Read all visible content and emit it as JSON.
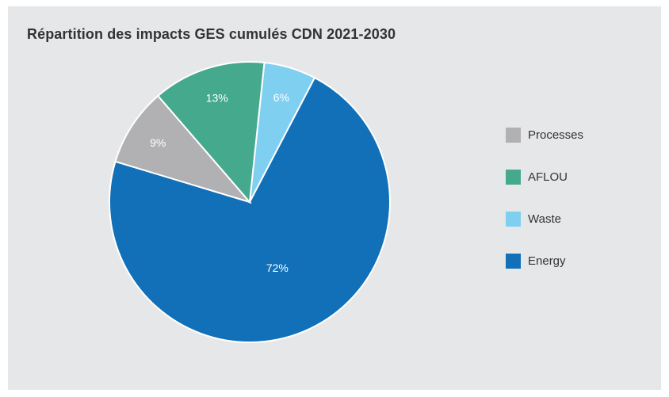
{
  "title": "Répartition des impacts GES cumulés CDN 2021-2030",
  "chart_data": {
    "type": "pie",
    "title": "Répartition des impacts GES cumulés CDN 2021-2030",
    "slices": [
      {
        "name": "Processes",
        "value": 9,
        "label": "9%",
        "color": "#b1b0b3"
      },
      {
        "name": "AFLOU",
        "value": 13,
        "label": "13%",
        "color": "#45a98e"
      },
      {
        "name": "Waste",
        "value": 6,
        "label": "6%",
        "color": "#7fcff1"
      },
      {
        "name": "Energy",
        "value": 72,
        "label": "72%",
        "color": "#1170b8"
      }
    ],
    "legend_position": "right"
  }
}
